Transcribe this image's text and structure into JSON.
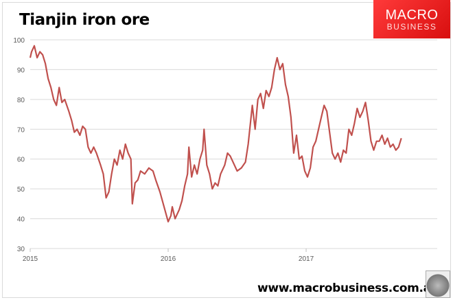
{
  "chart_data": {
    "type": "line",
    "title": "Tianjin iron ore",
    "xlabel": "",
    "ylabel": "",
    "xlim": [
      2015,
      2017.95
    ],
    "ylim": [
      30,
      100
    ],
    "yticks": [
      30,
      40,
      50,
      60,
      70,
      80,
      90,
      100
    ],
    "xticks": [
      2015,
      2016,
      2017
    ],
    "xtick_labels": [
      "2015",
      "2016",
      "2017"
    ],
    "grid": true,
    "color": "#c0504d",
    "series": [
      {
        "name": "Tianjin iron ore",
        "x": [
          2015.0,
          2015.01,
          2015.03,
          2015.05,
          2015.07,
          2015.09,
          2015.11,
          2015.13,
          2015.15,
          2015.17,
          2015.19,
          2015.21,
          2015.23,
          2015.25,
          2015.28,
          2015.3,
          2015.32,
          2015.34,
          2015.36,
          2015.38,
          2015.4,
          2015.42,
          2015.44,
          2015.46,
          2015.48,
          2015.51,
          2015.53,
          2015.55,
          2015.57,
          2015.59,
          2015.61,
          2015.63,
          2015.65,
          2015.67,
          2015.69,
          2015.71,
          2015.73,
          2015.74,
          2015.76,
          2015.78,
          2015.8,
          2015.83,
          2015.86,
          2015.89,
          2015.91,
          2015.94,
          2015.97,
          2016.0,
          2016.02,
          2016.03,
          2016.05,
          2016.08,
          2016.1,
          2016.12,
          2016.14,
          2016.15,
          2016.17,
          2016.19,
          2016.21,
          2016.23,
          2016.25,
          2016.26,
          2016.28,
          2016.3,
          2016.32,
          2016.34,
          2016.36,
          2016.38,
          2016.41,
          2016.43,
          2016.45,
          2016.47,
          2016.5,
          2016.53,
          2016.56,
          2016.58,
          2016.61,
          2016.63,
          2016.65,
          2016.67,
          2016.69,
          2016.71,
          2016.73,
          2016.75,
          2016.77,
          2016.79,
          2016.81,
          2016.83,
          2016.85,
          2016.87,
          2016.89,
          2016.91,
          2016.93,
          2016.95,
          2016.97,
          2016.99,
          2017.01,
          2017.03,
          2017.05,
          2017.07,
          2017.09,
          2017.11,
          2017.13,
          2017.15,
          2017.17,
          2017.19,
          2017.21,
          2017.23,
          2017.25,
          2017.27,
          2017.29,
          2017.31,
          2017.33,
          2017.35,
          2017.37,
          2017.39,
          2017.41,
          2017.43,
          2017.45,
          2017.47,
          2017.49,
          2017.51,
          2017.53,
          2017.55,
          2017.57,
          2017.59,
          2017.61,
          2017.63,
          2017.65,
          2017.67,
          2017.69
        ],
        "y": [
          94,
          96,
          98,
          94,
          96,
          95,
          92,
          87,
          84,
          80,
          78,
          84,
          79,
          80,
          76,
          73,
          69,
          70,
          68,
          71,
          70,
          64,
          62,
          64,
          62,
          58,
          55,
          47,
          49,
          55,
          60,
          58,
          63,
          60,
          65,
          62,
          60,
          45,
          52,
          53,
          56,
          55,
          57,
          56,
          53,
          49,
          44,
          39,
          41,
          44,
          40,
          43,
          46,
          51,
          55,
          64,
          54,
          58,
          55,
          60,
          63,
          70,
          58,
          55,
          50,
          52,
          51,
          55,
          58,
          62,
          61,
          59,
          56,
          57,
          59,
          65,
          78,
          70,
          80,
          82,
          77,
          83,
          81,
          84,
          90,
          94,
          90,
          92,
          85,
          81,
          74,
          62,
          68,
          60,
          61,
          56,
          54,
          57,
          64,
          66,
          70,
          74,
          78,
          76,
          69,
          62,
          60,
          62,
          59,
          63,
          62,
          70,
          68,
          72,
          77,
          74,
          76,
          79,
          73,
          66,
          63,
          66,
          66,
          68,
          65,
          67,
          64,
          65,
          63,
          64,
          67
        ]
      }
    ]
  },
  "logo": {
    "line1": "MACRO",
    "line2": "BUSINESS"
  },
  "footer": {
    "url": "www.macrobusiness.com.au"
  }
}
